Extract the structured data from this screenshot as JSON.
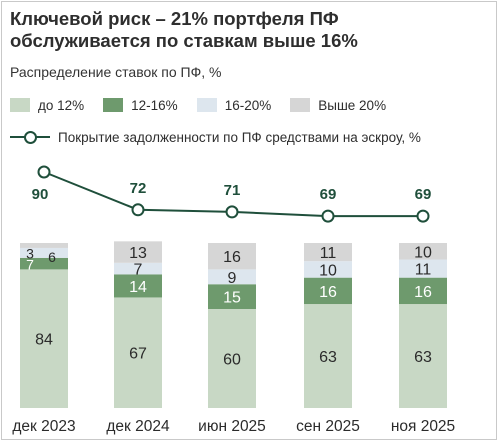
{
  "header": {
    "title": "Ключевой риск – 21% портфеля ПФ обслуживается по ставкам выше 16%"
  },
  "chart_data": {
    "type": "bar",
    "stacked": true,
    "subtitle": "Распределение ставок по ПФ, %",
    "categories": [
      "дек 2023",
      "дек 2024",
      "июн 2025",
      "сен 2025",
      "ноя 2025"
    ],
    "series": [
      {
        "name": "до 12%",
        "color": "#c8d8c5",
        "values": [
          84,
          67,
          60,
          63,
          63
        ]
      },
      {
        "name": "12-16%",
        "color": "#6e9a6d",
        "values": [
          7,
          14,
          15,
          16,
          16
        ]
      },
      {
        "name": "16-20%",
        "color": "#dde6ee",
        "values": [
          6,
          7,
          9,
          10,
          11
        ]
      },
      {
        "name": "Выше 20%",
        "color": "#d6d6d6",
        "values": [
          3,
          13,
          16,
          11,
          10
        ]
      }
    ],
    "line": {
      "name": "Покрытие задолженности по ПФ средствами на эскроу, %",
      "color": "#1f4f3b",
      "values": [
        90,
        72,
        71,
        69,
        69
      ]
    },
    "ylim": [
      0,
      100
    ],
    "xlabel": "",
    "ylabel": ""
  }
}
